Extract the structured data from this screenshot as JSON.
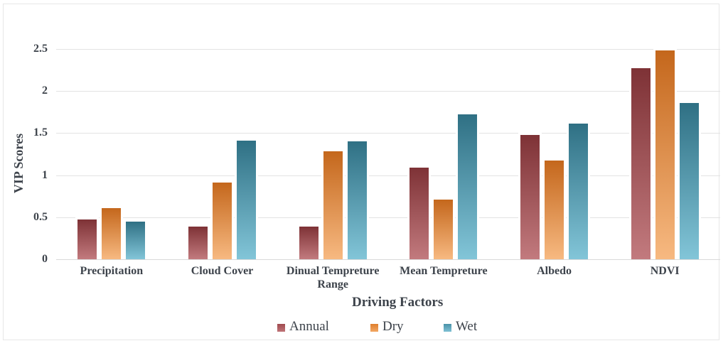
{
  "figure": {
    "background": "#ffffff",
    "border_color": "#e7e7e7"
  },
  "chart_data": {
    "type": "bar",
    "xlabel": "Driving Factors",
    "ylabel": "VIP Scores",
    "categories": [
      "Precipitation",
      "Cloud Cover",
      "Dinual Tempreture Range",
      "Mean Tempreture",
      "Albedo",
      "NDVI"
    ],
    "series": [
      {
        "name": "Annual",
        "values": [
          0.47,
          0.39,
          0.39,
          1.09,
          1.48,
          2.27
        ],
        "bar_top_color": "#7e3236",
        "bar_bottom_color": "#c27a7e",
        "legend_top_color": "#a04a4e",
        "legend_bottom_color": "#bf7478"
      },
      {
        "name": "Dry",
        "values": [
          0.61,
          0.91,
          1.28,
          0.71,
          1.17,
          2.48
        ],
        "bar_top_color": "#c4671c",
        "bar_bottom_color": "#f7b981",
        "legend_top_color": "#df7f2d",
        "legend_bottom_color": "#f2a763"
      },
      {
        "name": "Wet",
        "values": [
          0.45,
          1.41,
          1.4,
          1.72,
          1.61,
          1.86
        ],
        "bar_top_color": "#2f7084",
        "bar_bottom_color": "#82c5d8",
        "legend_top_color": "#4a92a8",
        "legend_bottom_color": "#7fc0d4"
      }
    ],
    "ylim": [
      0,
      2.5
    ],
    "yticks": [
      0,
      0.5,
      1,
      1.5,
      2,
      2.5
    ],
    "ytick_labels": [
      "0",
      "0.5",
      "1",
      "1.5",
      "2",
      "2.5"
    ],
    "grid": true,
    "gridline_color": "#e3e3e3",
    "legend_position": "bottom",
    "text_color": "#3d434b"
  }
}
